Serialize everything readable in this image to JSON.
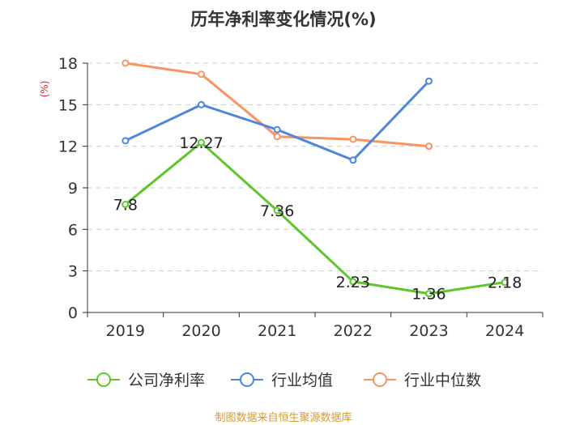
{
  "chart_data": {
    "type": "line",
    "title": "历年净利率变化情况(%)",
    "unit_label": "(%)",
    "categories": [
      "2019",
      "2020",
      "2021",
      "2022",
      "2023",
      "2024"
    ],
    "ylim": [
      0,
      18
    ],
    "yticks": [
      0,
      3,
      6,
      9,
      12,
      15,
      18
    ],
    "ytick_labels": [
      "0",
      "3",
      "6",
      "9",
      "12",
      "15",
      "18"
    ],
    "series": [
      {
        "name": "公司净利率",
        "color": "#5ec62b",
        "values": [
          7.8,
          12.27,
          7.36,
          2.23,
          1.36,
          2.18
        ],
        "labels": [
          "7.8",
          "12.27",
          "7.36",
          "2.23",
          "1.36",
          "2.18"
        ]
      },
      {
        "name": "行业均值",
        "color": "#4f86dc",
        "values": [
          12.4,
          15.0,
          13.2,
          11.0,
          16.7,
          null
        ]
      },
      {
        "name": "行业中位数",
        "color": "#f79462",
        "values": [
          18.0,
          17.2,
          12.7,
          12.5,
          12.0,
          null
        ]
      }
    ],
    "legend_position": "bottom",
    "source": "制图数据来自恒生聚源数据库"
  }
}
